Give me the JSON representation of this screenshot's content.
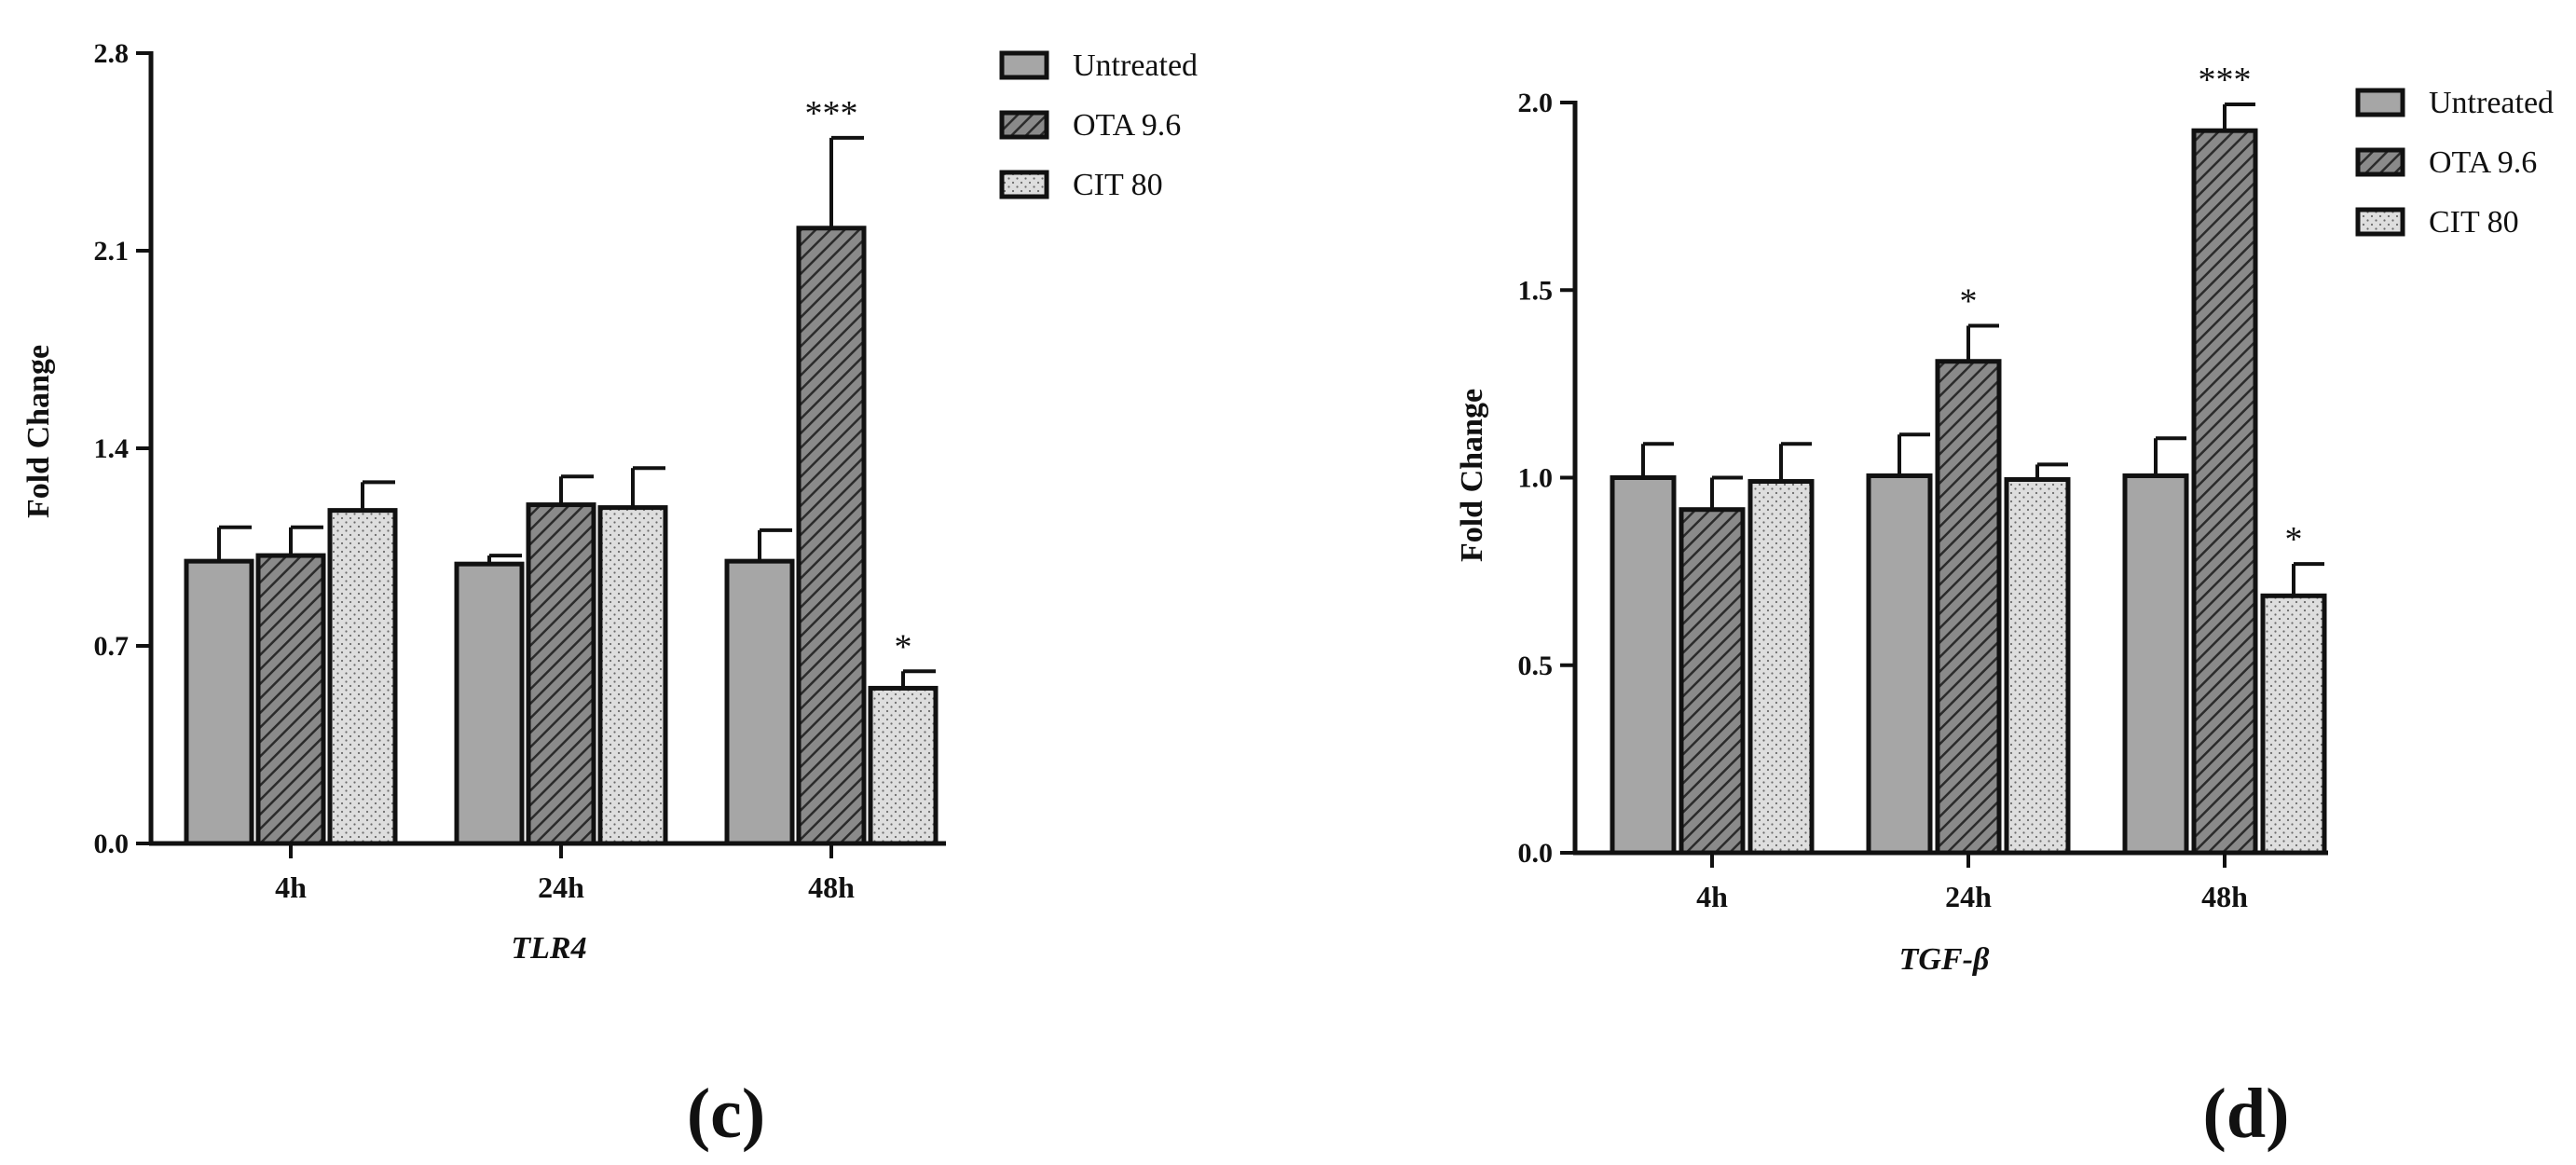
{
  "chart_data": [
    {
      "type": "bar",
      "panel_label": "(c)",
      "ylabel": "Fold Change",
      "xlabel": "TLR4",
      "ylim": [
        0,
        2.8
      ],
      "yticks": [
        "0.0",
        "0.7",
        "1.4",
        "2.1",
        "2.8"
      ],
      "categories": [
        "4h",
        "24h",
        "48h"
      ],
      "series": [
        {
          "name": "Untreated",
          "values": [
            1.0,
            0.99,
            1.0
          ],
          "errors": [
            0.12,
            0.03,
            0.11
          ],
          "significance": [
            "",
            "",
            ""
          ]
        },
        {
          "name": "OTA 9.6",
          "values": [
            1.02,
            1.2,
            2.18
          ],
          "errors": [
            0.1,
            0.1,
            0.32
          ],
          "significance": [
            "",
            "",
            "***"
          ]
        },
        {
          "name": "CIT 80",
          "values": [
            1.18,
            1.19,
            0.55
          ],
          "errors": [
            0.1,
            0.14,
            0.06
          ],
          "significance": [
            "",
            "",
            "*"
          ]
        }
      ],
      "legend": [
        "Untreated",
        "OTA 9.6",
        "CIT 80"
      ]
    },
    {
      "type": "bar",
      "panel_label": "(d)",
      "ylabel": "Fold Change",
      "xlabel": "TGF-β",
      "ylim": [
        0,
        2.0
      ],
      "yticks": [
        "0.0",
        "0.5",
        "1.0",
        "1.5",
        "2.0"
      ],
      "categories": [
        "4h",
        "24h",
        "48h"
      ],
      "series": [
        {
          "name": "Untreated",
          "values": [
            1.0,
            1.005,
            1.005
          ],
          "errors": [
            0.09,
            0.11,
            0.1
          ],
          "significance": [
            "",
            "",
            ""
          ]
        },
        {
          "name": "OTA 9.6",
          "values": [
            0.915,
            1.31,
            1.925
          ],
          "errors": [
            0.085,
            0.095,
            0.07
          ],
          "significance": [
            "",
            "*",
            "***"
          ]
        },
        {
          "name": "CIT 80",
          "values": [
            0.99,
            0.995,
            0.685
          ],
          "errors": [
            0.1,
            0.04,
            0.085
          ],
          "significance": [
            "",
            "",
            "*"
          ]
        }
      ],
      "legend": [
        "Untreated",
        "OTA 9.6",
        "CIT 80"
      ]
    }
  ]
}
